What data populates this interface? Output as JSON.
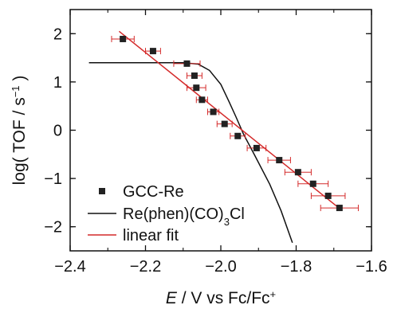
{
  "chart_data": {
    "type": "scatter",
    "title": "",
    "xlabel": {
      "italic": "E",
      "rest": " / V vs Fc/Fc",
      "superscript": "+"
    },
    "ylabel": {
      "main": "log( TOF / s",
      "superscript": "−1",
      "close": " )"
    },
    "xlim": [
      -2.4,
      -1.6
    ],
    "ylim": [
      -2.5,
      2.5
    ],
    "x_ticks": [
      -2.4,
      -2.2,
      -2.0,
      -1.8,
      -1.6
    ],
    "x_tick_labels": [
      "−2.4",
      "−2.2",
      "−2.0",
      "−1.8",
      "−1.6"
    ],
    "y_ticks": [
      -2,
      -1,
      0,
      1,
      2
    ],
    "y_tick_labels": [
      "−2",
      "−1",
      "0",
      "1",
      "2"
    ],
    "grid": false,
    "legend_position": "bottom-left",
    "series": [
      {
        "name": "GCC-Re",
        "kind": "scatter-errorbar",
        "marker_color": "#222222",
        "errorbar_color": "#d42a2a",
        "points": [
          {
            "x": -2.26,
            "y": 1.89,
            "xerr": 0.03
          },
          {
            "x": -2.18,
            "y": 1.64,
            "xerr": 0.02
          },
          {
            "x": -2.09,
            "y": 1.38,
            "xerr": 0.035
          },
          {
            "x": -2.07,
            "y": 1.13,
            "xerr": 0.02
          },
          {
            "x": -2.065,
            "y": 0.88,
            "xerr": 0.025
          },
          {
            "x": -2.05,
            "y": 0.63,
            "xerr": 0.015
          },
          {
            "x": -2.02,
            "y": 0.38,
            "xerr": 0.015
          },
          {
            "x": -1.99,
            "y": 0.13,
            "xerr": 0.02
          },
          {
            "x": -1.955,
            "y": -0.12,
            "xerr": 0.02
          },
          {
            "x": -1.905,
            "y": -0.37,
            "xerr": 0.025
          },
          {
            "x": -1.845,
            "y": -0.62,
            "xerr": 0.03
          },
          {
            "x": -1.795,
            "y": -0.87,
            "xerr": 0.035
          },
          {
            "x": -1.755,
            "y": -1.11,
            "xerr": 0.04
          },
          {
            "x": -1.715,
            "y": -1.36,
            "xerr": 0.045
          },
          {
            "x": -1.685,
            "y": -1.61,
            "xerr": 0.05
          }
        ]
      },
      {
        "name": "Re(phen)(CO)",
        "name_subscript": "3",
        "name_suffix": "Cl",
        "kind": "line",
        "color": "#111111",
        "points": [
          [
            -2.35,
            1.4
          ],
          [
            -2.1,
            1.4
          ],
          [
            -2.06,
            1.37
          ],
          [
            -2.03,
            1.24
          ],
          [
            -2.0,
            0.95
          ],
          [
            -1.98,
            0.62
          ],
          [
            -1.96,
            0.28
          ],
          [
            -1.94,
            -0.08
          ],
          [
            -1.91,
            -0.52
          ],
          [
            -1.87,
            -1.12
          ],
          [
            -1.84,
            -1.67
          ],
          [
            -1.81,
            -2.33
          ]
        ]
      },
      {
        "name": "linear fit",
        "kind": "line",
        "color": "#d42a2a",
        "points": [
          [
            -2.27,
            2.05
          ],
          [
            -1.685,
            -1.62
          ]
        ]
      }
    ]
  }
}
